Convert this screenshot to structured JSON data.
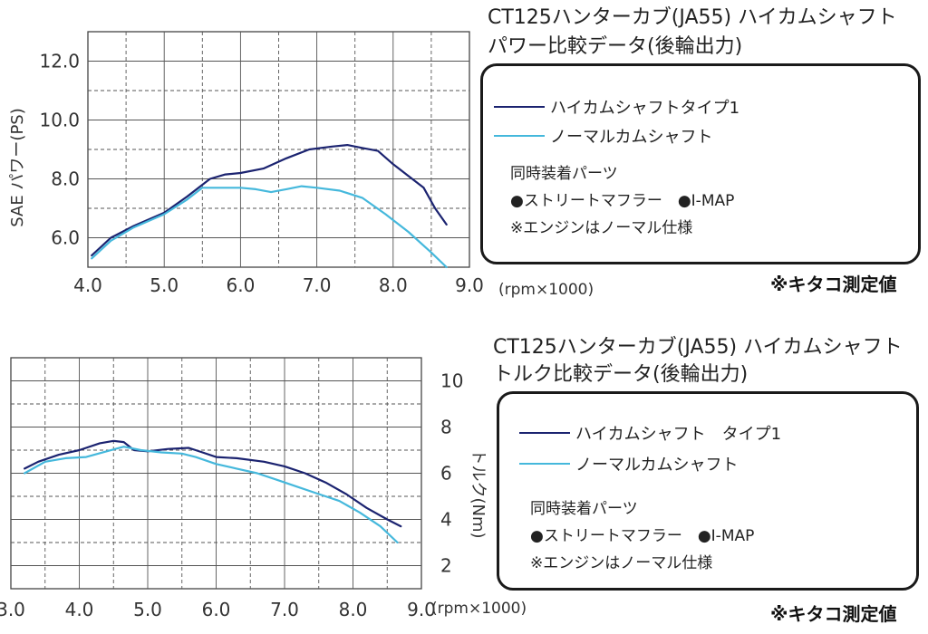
{
  "colors": {
    "hicam": "#1b2370",
    "normal": "#45b8dc",
    "grid": "#555555"
  },
  "power_panel": {
    "title_line1": "CT125ハンターカブ(JA55) ハイカムシャフト",
    "title_line2": "パワー比較データ(後輪出力)",
    "legend": [
      {
        "label": "ハイカムシャフトタイプ1",
        "color_key": "hicam"
      },
      {
        "label": "ノーマルカムシャフト",
        "color_key": "normal"
      }
    ],
    "parts_title": "同時装着パーツ",
    "parts_line": "●ストリートマフラー　●I-MAP",
    "parts_note": "※エンジンはノーマル仕様",
    "measured_by": "※キタコ測定値",
    "x_unit": "(rpm×1000)"
  },
  "torque_panel": {
    "title_line1": "CT125ハンターカブ(JA55) ハイカムシャフト",
    "title_line2": "トルク比較データ(後輪出力)",
    "legend": [
      {
        "label": "ハイカムシャフト　タイプ1",
        "color_key": "hicam"
      },
      {
        "label": "ノーマルカムシャフト",
        "color_key": "normal"
      }
    ],
    "parts_title": "同時装着パーツ",
    "parts_line": "●ストリートマフラー　●I-MAP",
    "parts_note": "※エンジンはノーマル仕様",
    "measured_by": "※キタコ測定値",
    "x_unit": "(rpm×1000)"
  },
  "chart_data": [
    {
      "type": "line",
      "title": "パワー比較データ(後輪出力)",
      "xlabel": "(rpm×1000)",
      "ylabel": "SAE パワー(PS)",
      "xlim": [
        4.0,
        9.0
      ],
      "ylim": [
        5.0,
        13.0
      ],
      "x_ticks": [
        "4.0",
        "5.0",
        "6.0",
        "7.0",
        "8.0",
        "9.0"
      ],
      "x_tick_values": [
        4.0,
        5.0,
        6.0,
        7.0,
        8.0,
        9.0
      ],
      "y_ticks": [
        "6.0",
        "8.0",
        "10.0",
        "12.0"
      ],
      "y_tick_values": [
        6.0,
        8.0,
        10.0,
        12.0
      ],
      "series": [
        {
          "name": "ハイカムシャフトタイプ1",
          "color_key": "hicam",
          "points": [
            [
              4.05,
              5.4
            ],
            [
              4.3,
              6.0
            ],
            [
              4.6,
              6.4
            ],
            [
              5.0,
              6.85
            ],
            [
              5.3,
              7.4
            ],
            [
              5.6,
              8.0
            ],
            [
              5.8,
              8.15
            ],
            [
              6.0,
              8.2
            ],
            [
              6.3,
              8.35
            ],
            [
              6.6,
              8.7
            ],
            [
              6.9,
              9.0
            ],
            [
              7.2,
              9.1
            ],
            [
              7.4,
              9.15
            ],
            [
              7.6,
              9.05
            ],
            [
              7.8,
              8.95
            ],
            [
              8.0,
              8.5
            ],
            [
              8.2,
              8.1
            ],
            [
              8.4,
              7.7
            ],
            [
              8.55,
              7.0
            ],
            [
              8.7,
              6.45
            ]
          ]
        },
        {
          "name": "ノーマルカムシャフト",
          "color_key": "normal",
          "points": [
            [
              4.05,
              5.3
            ],
            [
              4.3,
              5.9
            ],
            [
              4.6,
              6.35
            ],
            [
              5.0,
              6.8
            ],
            [
              5.3,
              7.3
            ],
            [
              5.5,
              7.7
            ],
            [
              5.8,
              7.7
            ],
            [
              6.0,
              7.7
            ],
            [
              6.2,
              7.65
            ],
            [
              6.4,
              7.55
            ],
            [
              6.6,
              7.65
            ],
            [
              6.8,
              7.75
            ],
            [
              7.0,
              7.7
            ],
            [
              7.3,
              7.6
            ],
            [
              7.6,
              7.35
            ],
            [
              7.9,
              6.8
            ],
            [
              8.2,
              6.2
            ],
            [
              8.5,
              5.5
            ],
            [
              8.7,
              5.0
            ]
          ]
        }
      ]
    },
    {
      "type": "line",
      "title": "トルク比較データ(後輪出力)",
      "xlabel": "(rpm×1000)",
      "ylabel": "トルク(Nm)",
      "xlim": [
        3.0,
        9.0
      ],
      "ylim": [
        1.0,
        11.0
      ],
      "x_ticks": [
        "3.0",
        "4.0",
        "5.0",
        "6.0",
        "7.0",
        "8.0",
        "9.0"
      ],
      "x_tick_values": [
        3.0,
        4.0,
        5.0,
        6.0,
        7.0,
        8.0,
        9.0
      ],
      "y_ticks": [
        "2",
        "4",
        "6",
        "8",
        "10"
      ],
      "y_tick_values": [
        2,
        4,
        6,
        8,
        10
      ],
      "series": [
        {
          "name": "ハイカムシャフト　タイプ1",
          "color_key": "hicam",
          "points": [
            [
              3.2,
              6.2
            ],
            [
              3.4,
              6.5
            ],
            [
              3.7,
              6.8
            ],
            [
              4.0,
              7.0
            ],
            [
              4.3,
              7.3
            ],
            [
              4.5,
              7.4
            ],
            [
              4.65,
              7.35
            ],
            [
              4.8,
              7.0
            ],
            [
              5.0,
              6.95
            ],
            [
              5.3,
              7.05
            ],
            [
              5.6,
              7.1
            ],
            [
              5.8,
              6.9
            ],
            [
              6.0,
              6.7
            ],
            [
              6.3,
              6.65
            ],
            [
              6.7,
              6.5
            ],
            [
              7.0,
              6.3
            ],
            [
              7.3,
              6.0
            ],
            [
              7.6,
              5.6
            ],
            [
              7.9,
              5.1
            ],
            [
              8.2,
              4.5
            ],
            [
              8.5,
              4.0
            ],
            [
              8.7,
              3.7
            ]
          ]
        },
        {
          "name": "ノーマルカムシャフト",
          "color_key": "normal",
          "points": [
            [
              3.2,
              6.0
            ],
            [
              3.5,
              6.5
            ],
            [
              3.8,
              6.65
            ],
            [
              4.1,
              6.7
            ],
            [
              4.4,
              6.95
            ],
            [
              4.65,
              7.15
            ],
            [
              4.9,
              7.0
            ],
            [
              5.2,
              6.9
            ],
            [
              5.5,
              6.85
            ],
            [
              5.7,
              6.7
            ],
            [
              6.0,
              6.4
            ],
            [
              6.3,
              6.2
            ],
            [
              6.6,
              6.0
            ],
            [
              6.9,
              5.7
            ],
            [
              7.2,
              5.4
            ],
            [
              7.5,
              5.1
            ],
            [
              7.8,
              4.8
            ],
            [
              8.1,
              4.3
            ],
            [
              8.4,
              3.7
            ],
            [
              8.65,
              3.0
            ]
          ]
        }
      ]
    }
  ]
}
